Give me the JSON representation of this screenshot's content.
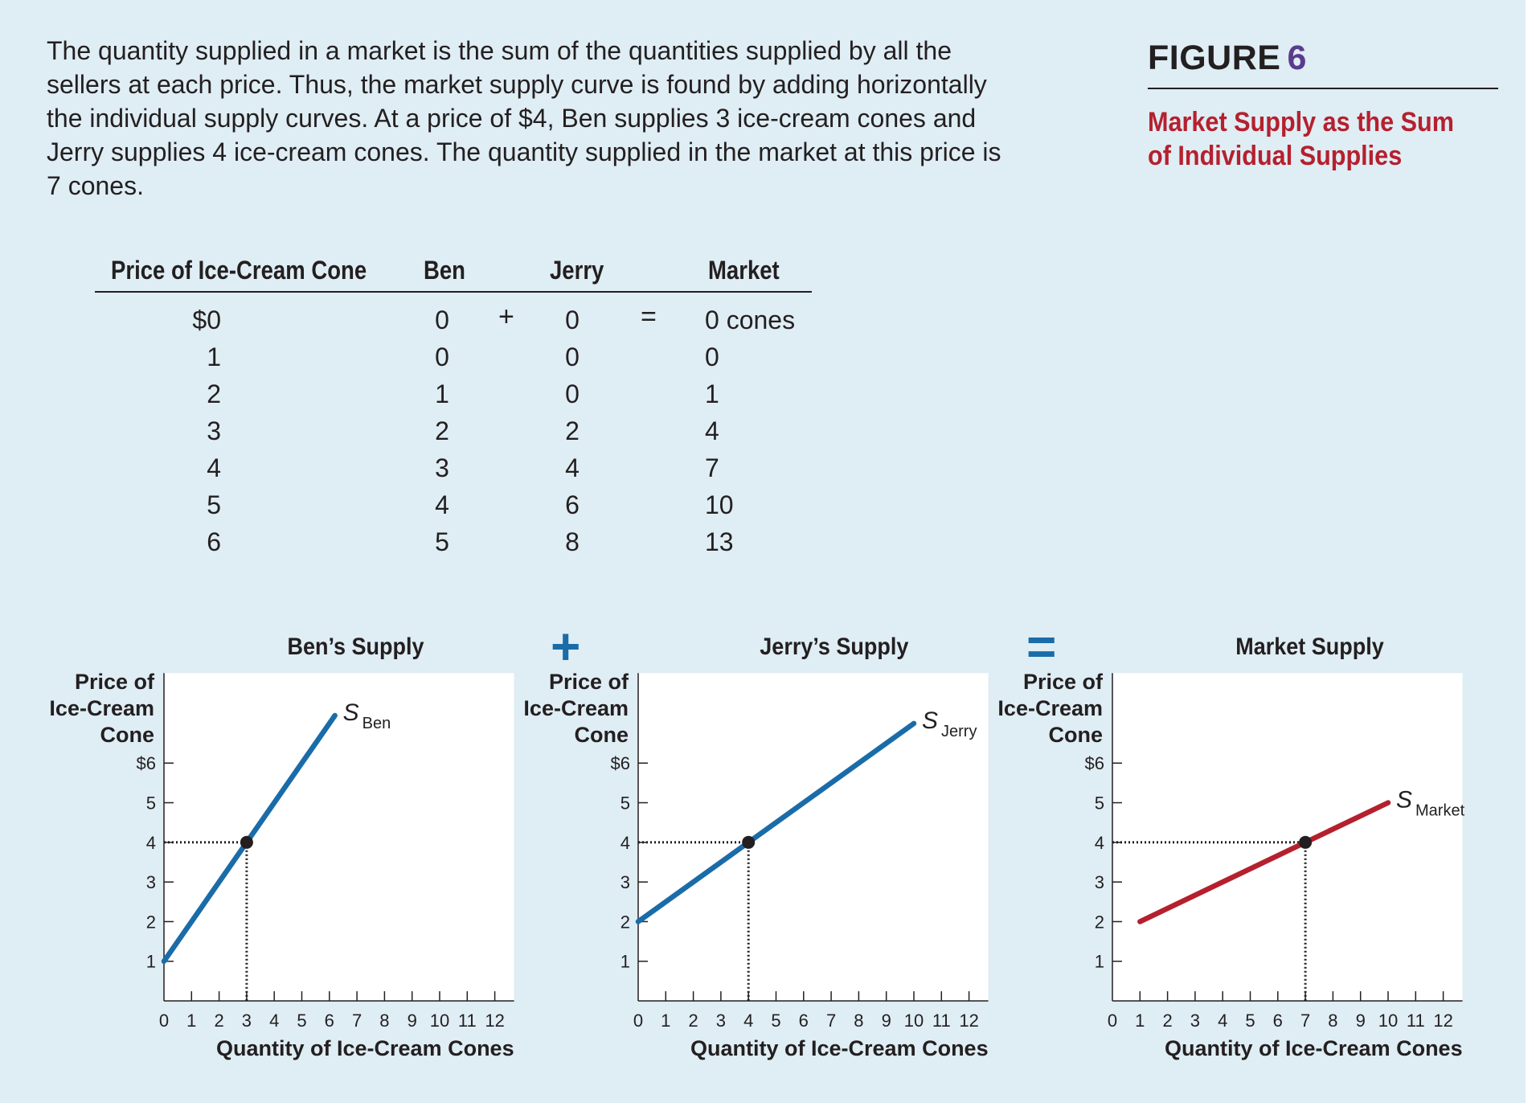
{
  "caption": "The quantity supplied in a market is the sum of the quantities supplied by all the sellers at each price. Thus, the market supply curve is found by adding horizontally the individual supply curves. At a price of $4, Ben supplies 3 ice-cream cones and Jerry supplies 4 ice-cream cones. The quantity supplied in the market at this price is 7 cones.",
  "figure": {
    "label": "FIGURE",
    "number": "6",
    "title": "Market Supply as the Sum of Individual Supplies"
  },
  "table": {
    "headers": [
      "Price of Ice-Cream Cone",
      "Ben",
      "Jerry",
      "Market"
    ],
    "plus": "+",
    "equals": "=",
    "rows": [
      {
        "price": "$0",
        "ben": "0",
        "jerry": "0",
        "market": "0 cones"
      },
      {
        "price": "1",
        "ben": "0",
        "jerry": "0",
        "market": "0"
      },
      {
        "price": "2",
        "ben": "1",
        "jerry": "0",
        "market": "1"
      },
      {
        "price": "3",
        "ben": "2",
        "jerry": "2",
        "market": "4"
      },
      {
        "price": "4",
        "ben": "3",
        "jerry": "4",
        "market": "7"
      },
      {
        "price": "5",
        "ben": "4",
        "jerry": "6",
        "market": "10"
      },
      {
        "price": "6",
        "ben": "5",
        "jerry": "8",
        "market": "13"
      }
    ]
  },
  "operators": {
    "plus": "+",
    "equals": "="
  },
  "colors": {
    "background": "#dfedf4",
    "individual_curve": "#1a6ca8",
    "market_curve": "#b5202e",
    "title_red": "#b5202e",
    "figure_number": "#5b3b8c"
  },
  "chart_data": [
    {
      "type": "line",
      "title": "Ben’s Supply",
      "ylabel": [
        "Price of",
        "Ice-Cream",
        "Cone"
      ],
      "xlabel": "Quantity of Ice-Cream Cones",
      "y_ticks": [
        "1",
        "2",
        "3",
        "4",
        "5",
        "$6"
      ],
      "x_ticks": [
        "0",
        "1",
        "2",
        "3",
        "4",
        "5",
        "6",
        "7",
        "8",
        "9",
        "10",
        "11",
        "12"
      ],
      "xlim": [
        0,
        12
      ],
      "ylim": [
        0,
        6
      ],
      "series": [
        {
          "name": "S",
          "subscript": "Ben",
          "color": "#1a6ca8",
          "x": [
            0,
            6.2
          ],
          "y": [
            1,
            7.2
          ]
        }
      ],
      "highlight": {
        "x": 3,
        "y": 4
      }
    },
    {
      "type": "line",
      "title": "Jerry’s Supply",
      "ylabel": [
        "Price of",
        "Ice-Cream",
        "Cone"
      ],
      "xlabel": "Quantity of Ice-Cream Cones",
      "y_ticks": [
        "1",
        "2",
        "3",
        "4",
        "5",
        "$6"
      ],
      "x_ticks": [
        "0",
        "1",
        "2",
        "3",
        "4",
        "5",
        "6",
        "7",
        "8",
        "9",
        "10",
        "11",
        "12"
      ],
      "xlim": [
        0,
        12
      ],
      "ylim": [
        0,
        6
      ],
      "series": [
        {
          "name": "S",
          "subscript": "Jerry",
          "color": "#1a6ca8",
          "x": [
            0,
            10
          ],
          "y": [
            2,
            7
          ]
        }
      ],
      "highlight": {
        "x": 4,
        "y": 4
      }
    },
    {
      "type": "line",
      "title": "Market Supply",
      "ylabel": [
        "Price of",
        "Ice-Cream",
        "Cone"
      ],
      "xlabel": "Quantity of Ice-Cream Cones",
      "y_ticks": [
        "1",
        "2",
        "3",
        "4",
        "5",
        "$6"
      ],
      "x_ticks": [
        "0",
        "1",
        "2",
        "3",
        "4",
        "5",
        "6",
        "7",
        "8",
        "9",
        "10",
        "11",
        "12"
      ],
      "xlim": [
        0,
        12
      ],
      "ylim": [
        0,
        6
      ],
      "series": [
        {
          "name": "S",
          "subscript": "Market",
          "color": "#b5202e",
          "x": [
            1,
            10
          ],
          "y": [
            2,
            5
          ]
        }
      ],
      "highlight": {
        "x": 7,
        "y": 4
      }
    }
  ]
}
